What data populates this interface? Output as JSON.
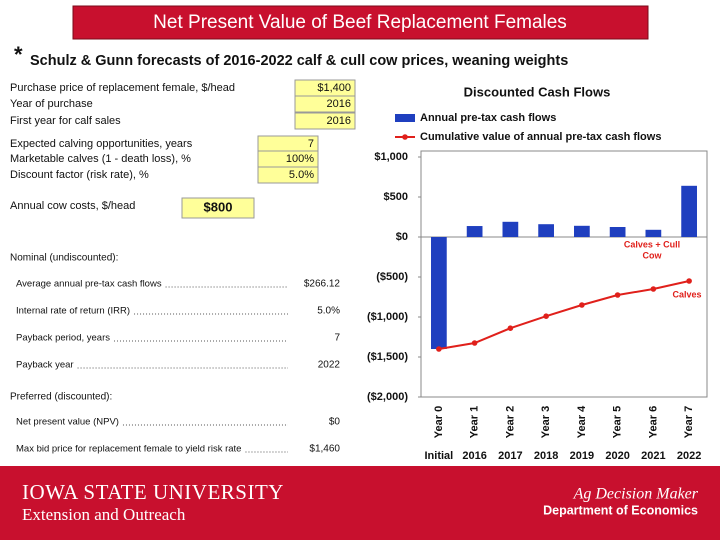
{
  "header": {
    "title": "Net Present Value of Beef Replacement Females",
    "bullet": "*",
    "subtitle": "Schulz & Gunn forecasts of 2016-2022 calf & cull cow prices, weaning weights"
  },
  "inputs": [
    {
      "label": "Purchase price of replacement female, $/head",
      "value": "$1,400"
    },
    {
      "label": "Year of purchase",
      "value": "2016"
    },
    {
      "label": "First year for calf sales",
      "value": "2016"
    },
    {
      "label": "Expected calving opportunities, years",
      "value": "7"
    },
    {
      "label": "Marketable calves (1 - death loss), %",
      "value": "100%"
    },
    {
      "label": "Discount factor (risk rate), %",
      "value": "5.0%"
    },
    {
      "label": "Annual cow costs, $/head",
      "value": "$800"
    }
  ],
  "results": {
    "nominal_heading": "Nominal (undiscounted):",
    "nominal": [
      {
        "label": "Average annual pre-tax cash flows",
        "value": "$266.12"
      },
      {
        "label": "Internal rate of return (IRR)",
        "value": "5.0%"
      },
      {
        "label": "Payback period, years",
        "value": "7"
      },
      {
        "label": "Payback year",
        "value": "2022"
      }
    ],
    "preferred_heading": "Preferred (discounted):",
    "preferred": [
      {
        "label": "Net present value (NPV)",
        "value": "$0"
      },
      {
        "label": "Max bid price for replacement female to yield risk rate",
        "value": "$1,460"
      }
    ]
  },
  "chart_data": {
    "type": "bar",
    "title": "Discounted Cash Flows",
    "categories": [
      "Year 0",
      "Year 1",
      "Year 2",
      "Year 3",
      "Year 4",
      "Year 5",
      "Year 6",
      "Year 7"
    ],
    "category_years": [
      "Initial",
      "2016",
      "2017",
      "2018",
      "2019",
      "2020",
      "2021",
      "2022"
    ],
    "series": [
      {
        "name": "Annual pre-tax cash flows",
        "type": "bar",
        "color": "#1f3fbf",
        "values": [
          -1400,
          137,
          190,
          160,
          140,
          125,
          90,
          640
        ]
      },
      {
        "name": "Cumulative value of annual pre-tax cash flows",
        "type": "line",
        "color": "#e0201b",
        "values": [
          -1400,
          -1325,
          -1140,
          -990,
          -850,
          -725,
          -650,
          -550
        ]
      }
    ],
    "ylim": [
      -2000,
      1000
    ],
    "yticks": [
      {
        "value": 1000,
        "label": "$1,000"
      },
      {
        "value": 500,
        "label": "$500"
      },
      {
        "value": 0,
        "label": "$0"
      },
      {
        "value": -500,
        "label": "($500)"
      },
      {
        "value": -1000,
        "label": "($1,000)"
      },
      {
        "value": -1500,
        "label": "($1,500)"
      },
      {
        "value": -2000,
        "label": "($2,000)"
      }
    ],
    "annotations": [
      {
        "lines": [
          "Calves + Cull",
          "Cow"
        ]
      },
      {
        "lines": [
          "Calves"
        ]
      }
    ]
  },
  "footer": {
    "university": "IOWA STATE UNIVERSITY",
    "unit": "Extension and Outreach",
    "program": "Ag Decision Maker",
    "department": "Department of Economics"
  }
}
